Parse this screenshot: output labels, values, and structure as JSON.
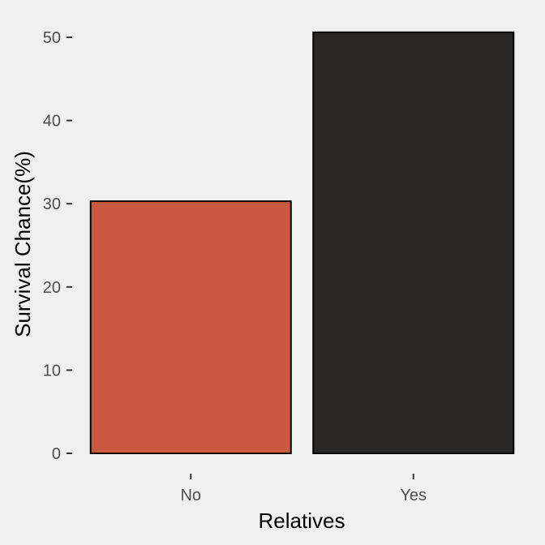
{
  "chart_data": {
    "type": "bar",
    "categories": [
      "No",
      "Yes"
    ],
    "values": [
      30.3,
      50.6
    ],
    "xlabel": "Relatives",
    "ylabel": "Survival Chance(%)",
    "ylim": [
      0,
      52
    ],
    "yticks": [
      0,
      10,
      20,
      30,
      40,
      50
    ],
    "grid": false,
    "legend": "none",
    "colors": {
      "No": "#c8583f",
      "Yes": "#2a2827",
      "background": "#f0f0f0"
    }
  }
}
